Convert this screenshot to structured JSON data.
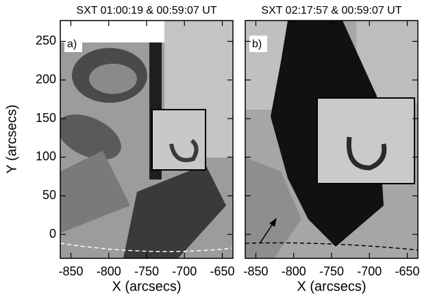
{
  "chart_data": [
    {
      "type": "image",
      "title": "SXT  01:00:19 & 00:59:07 UT",
      "panel_label": "a)",
      "x_label": "X (arcsecs)",
      "y_label": "Y (arcsecs)",
      "xlim": [
        -864,
        -636
      ],
      "ylim": [
        -31,
        277
      ],
      "xticks": [
        -850,
        -800,
        -750,
        -700,
        -650
      ],
      "yticks": [
        0,
        50,
        100,
        150,
        200,
        250
      ]
    },
    {
      "type": "image",
      "title": "SXT  02:17:57 & 00:59:07 UT",
      "panel_label": "b)",
      "x_label": "X (arcsecs)",
      "xlim": [
        -864,
        -636
      ],
      "ylim": [
        -31,
        277
      ],
      "xticks": [
        -850,
        -800,
        -750,
        -700,
        -650
      ],
      "yticks": [
        0,
        50,
        100,
        150,
        200,
        250
      ]
    }
  ]
}
